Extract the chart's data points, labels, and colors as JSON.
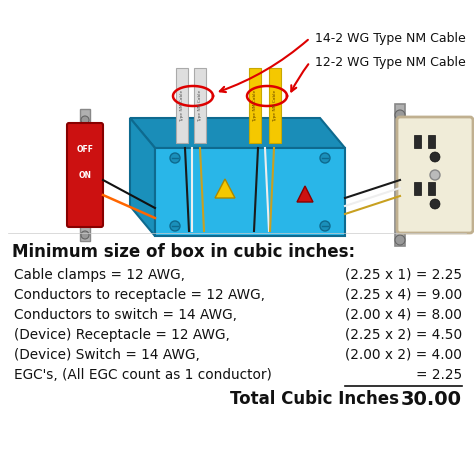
{
  "title": "Minimum size of box in cubic inches:",
  "rows": [
    {
      "label": "Cable clamps = 12 AWG,",
      "formula": "(2.25 x 1) = 2.25"
    },
    {
      "label": "Conductors to receptacle = 12 AWG,",
      "formula": "(2.25 x 4) = 9.00"
    },
    {
      "label": "Conductors to switch = 14 AWG,",
      "formula": "(2.00 x 4) = 8.00"
    },
    {
      "label": "(Device) Receptacle = 12 AWG,",
      "formula": "(2.25 x 2) = 4.50"
    },
    {
      "label": "(Device) Switch = 14 AWG,",
      "formula": "(2.00 x 2) = 4.00"
    },
    {
      "label": "EGC's, (All EGC count as 1 conductor)",
      "formula": "= 2.25"
    }
  ],
  "total_label": "Total Cubic Inches",
  "total_value": "30.00",
  "cable_label1": "14-2 WG Type NM Cable",
  "cable_label2": "12-2 WG Type NM Cable",
  "bg_color": "#ffffff",
  "box_blue": "#29B6E8",
  "box_blue_dark": "#1A8DB8",
  "box_blue_shadow": "#0E6A8F",
  "cable_white": "#E8E8E8",
  "cable_yellow": "#F5C800",
  "wire_black": "#1a1a1a",
  "wire_white": "#EEEEEE",
  "wire_bare": "#C8A020",
  "switch_red": "#CC1111",
  "switch_gray": "#AAAAAA",
  "rec_cream": "#F0ECD8",
  "rec_gray": "#BBBBBB",
  "red_arrow": "#DD0000",
  "title_fontsize": 12,
  "row_fontsize": 9.8,
  "total_fontsize": 12
}
